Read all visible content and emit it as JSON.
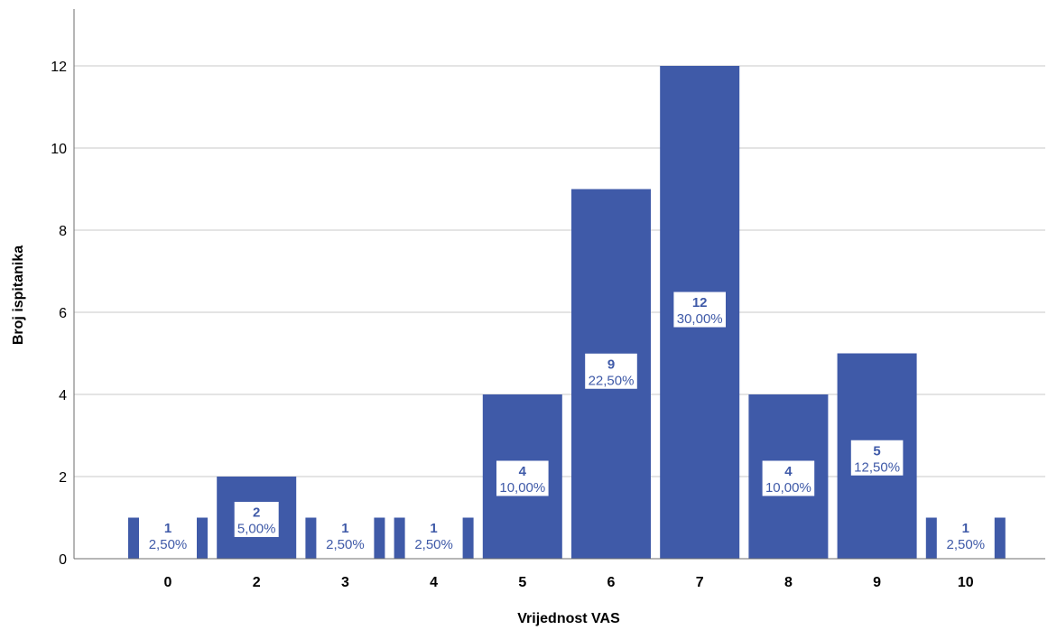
{
  "chart_data": {
    "type": "bar",
    "title": "",
    "xlabel": "Vrijednost VAS",
    "ylabel": "Broj ispitanika",
    "categories": [
      "0",
      "2",
      "3",
      "4",
      "5",
      "6",
      "7",
      "8",
      "9",
      "10"
    ],
    "values": [
      1,
      2,
      1,
      1,
      4,
      9,
      12,
      4,
      5,
      1
    ],
    "percent_labels": [
      "2,50%",
      "5,00%",
      "2,50%",
      "2,50%",
      "10,00%",
      "22,50%",
      "30,00%",
      "10,00%",
      "12,50%",
      "2,50%"
    ],
    "ylim": [
      0,
      13
    ],
    "yticks": [
      0,
      2,
      4,
      6,
      8,
      10,
      12
    ],
    "grid": true,
    "bar_color": "#3f5aa8",
    "label_text_color": "#3f5aa8",
    "grid_color": "#c8c8c8",
    "axis_color": "#6e6e6e"
  }
}
